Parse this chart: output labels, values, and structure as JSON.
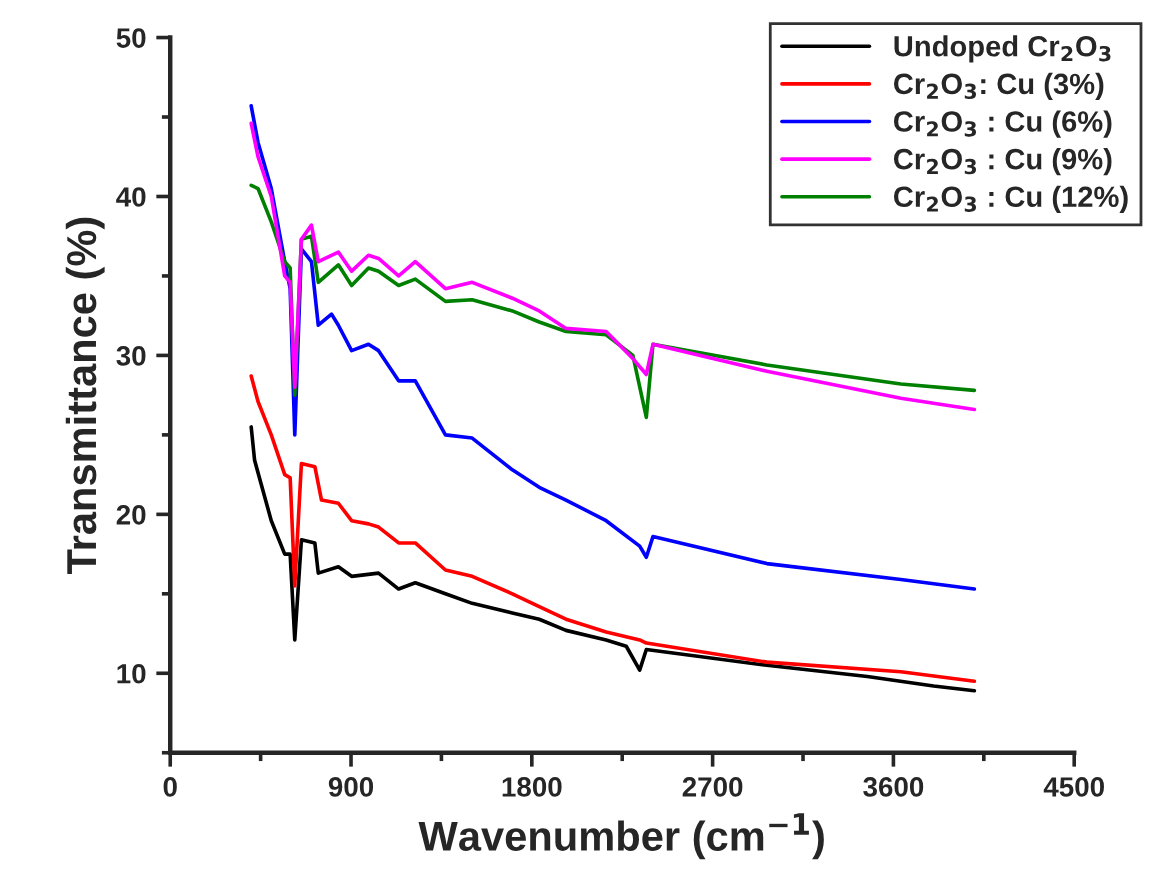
{
  "chart_data": {
    "type": "line",
    "xlabel": "Wavenumber (cm$^{−1}$)",
    "ylabel": "Transmittance (%)",
    "xlim": [
      0,
      4500
    ],
    "xticks": [
      0,
      900,
      1800,
      2700,
      3600,
      4500
    ],
    "ylim": [
      5,
      50
    ],
    "yticks": [
      10,
      20,
      30,
      40,
      50
    ],
    "grid": false,
    "legend": "top right",
    "marker": "none",
    "line_style": "solid",
    "series": [
      {
        "name": "Undoped Cr$_{2}$O$_{3}$",
        "color": "#000000",
        "x": [
          403,
          420,
          503,
          570,
          597,
          620,
          653,
          720,
          737,
          837,
          903,
          1037,
          1137,
          1220,
          1370,
          1503,
          1703,
          1837,
          1970,
          2170,
          2270,
          2337,
          2370,
          2970,
          3470,
          3800,
          4003
        ],
        "values": [
          25.5,
          23.4,
          19.6,
          17.5,
          17.5,
          12.1,
          18.4,
          18.2,
          16.3,
          16.7,
          16.1,
          16.3,
          15.3,
          15.7,
          15.0,
          14.4,
          13.8,
          13.4,
          12.7,
          12.1,
          11.7,
          10.2,
          11.5,
          10.5,
          9.8,
          9.2,
          8.9
        ]
      },
      {
        "name": "Cr$_{2}$O$_{3}$: Cu (3%)",
        "color": "#ff0000",
        "x": [
          403,
          437,
          503,
          570,
          597,
          620,
          653,
          720,
          753,
          837,
          903,
          987,
          1037,
          1137,
          1220,
          1370,
          1503,
          1703,
          1837,
          1970,
          2170,
          2337,
          2370,
          2970,
          3637,
          4003
        ],
        "values": [
          28.7,
          27.1,
          25.0,
          22.5,
          22.3,
          15.5,
          23.2,
          23.0,
          20.9,
          20.7,
          19.6,
          19.4,
          19.2,
          18.2,
          18.2,
          16.5,
          16.1,
          15.0,
          14.2,
          13.4,
          12.6,
          12.1,
          11.9,
          10.7,
          10.1,
          9.5
        ]
      },
      {
        "name": "Cr$_{2}$O$_{3}$ : Cu (6%)",
        "color": "#0000ff",
        "x": [
          403,
          437,
          503,
          570,
          597,
          620,
          653,
          703,
          737,
          803,
          837,
          903,
          987,
          1037,
          1137,
          1220,
          1370,
          1503,
          1703,
          1837,
          1970,
          2170,
          2337,
          2370,
          2403,
          2970,
          3637,
          4003
        ],
        "values": [
          45.7,
          43.4,
          40.5,
          35.9,
          34.2,
          25.0,
          36.7,
          35.9,
          31.9,
          32.6,
          31.9,
          30.3,
          30.7,
          30.3,
          28.4,
          28.4,
          25.0,
          24.8,
          22.8,
          21.7,
          20.9,
          19.6,
          18.0,
          17.3,
          18.6,
          16.9,
          15.9,
          15.3
        ]
      },
      {
        "name": "Cr$_{2}$O$_{3}$ : Cu (9%)",
        "color": "#ff00ff",
        "x": [
          403,
          437,
          503,
          570,
          597,
          620,
          653,
          703,
          737,
          837,
          903,
          987,
          1037,
          1137,
          1220,
          1370,
          1503,
          1703,
          1837,
          1970,
          2170,
          2303,
          2370,
          2403,
          2970,
          3637,
          4003
        ],
        "values": [
          44.6,
          42.5,
          40.0,
          35.0,
          34.6,
          28.0,
          37.3,
          38.2,
          35.9,
          36.5,
          35.3,
          36.3,
          36.1,
          35.0,
          35.9,
          34.2,
          34.6,
          33.6,
          32.8,
          31.7,
          31.5,
          29.8,
          28.8,
          30.7,
          29.0,
          27.3,
          26.6
        ]
      },
      {
        "name": "Cr$_{2}$O$_{3}$ : Cu (12%)",
        "color": "#008000",
        "x": [
          403,
          437,
          503,
          570,
          597,
          620,
          653,
          703,
          737,
          837,
          903,
          987,
          1037,
          1137,
          1220,
          1370,
          1503,
          1703,
          1837,
          1970,
          2170,
          2303,
          2370,
          2403,
          2970,
          3637,
          4003
        ],
        "values": [
          40.7,
          40.5,
          38.4,
          35.9,
          35.5,
          27.5,
          37.3,
          37.5,
          34.6,
          35.7,
          34.4,
          35.5,
          35.3,
          34.4,
          34.8,
          33.4,
          33.5,
          32.8,
          32.1,
          31.5,
          31.3,
          30.0,
          26.1,
          30.7,
          29.4,
          28.2,
          27.8
        ]
      }
    ]
  }
}
